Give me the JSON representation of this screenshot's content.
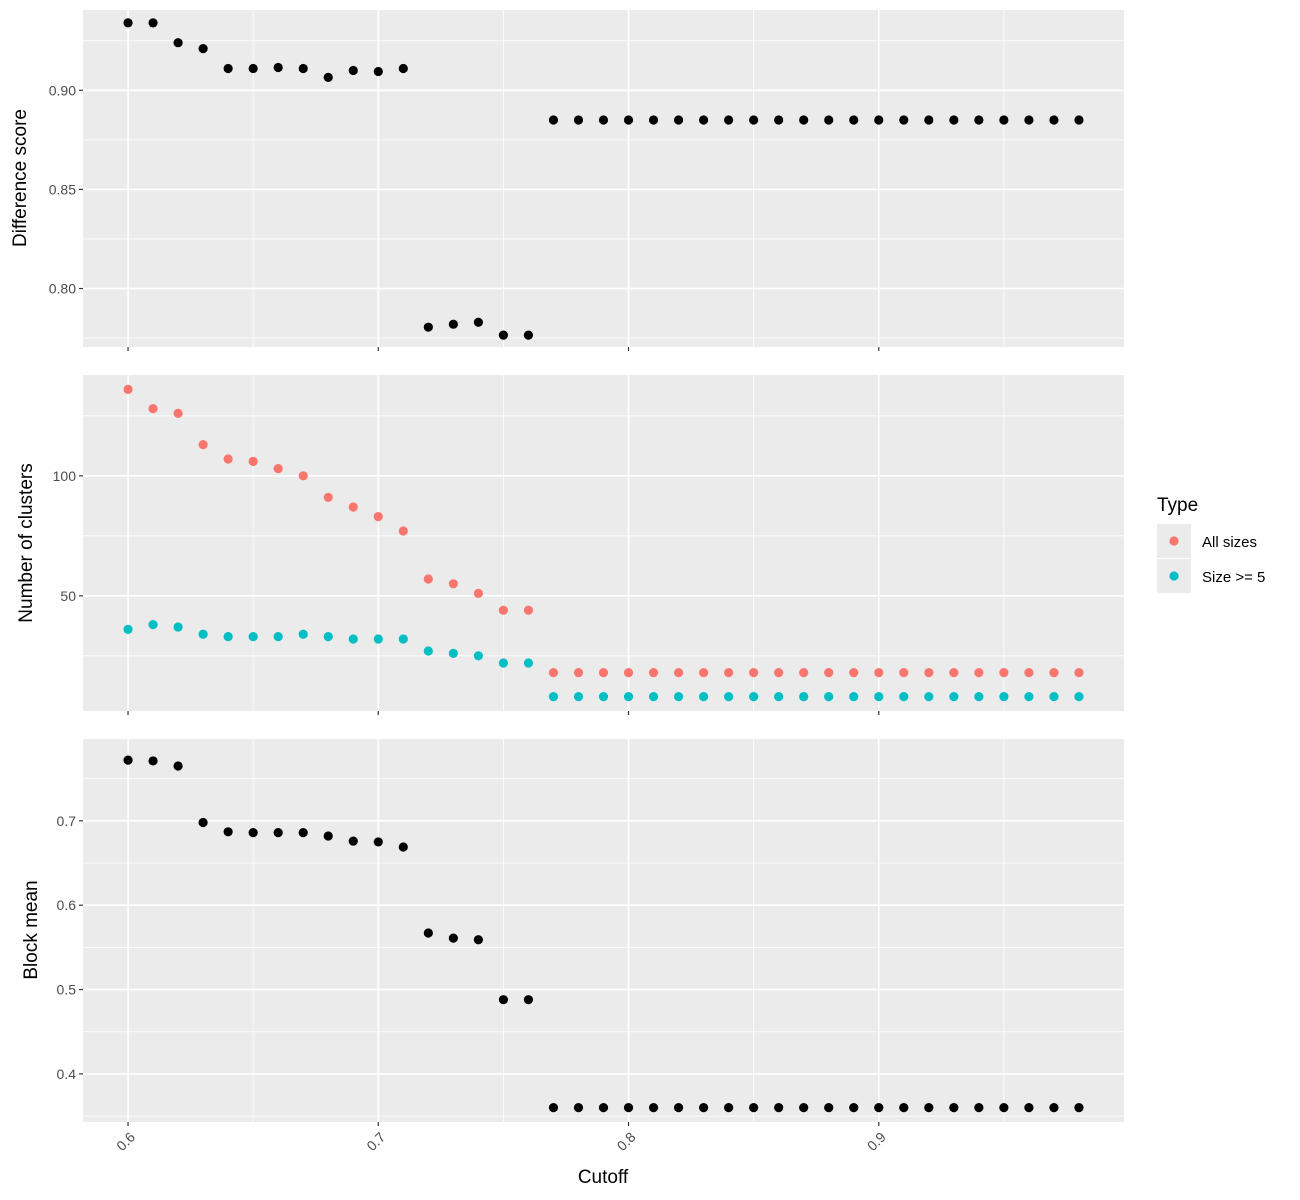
{
  "chart_data": [
    {
      "type": "scatter",
      "ylabel": "Difference score",
      "xlabel": "",
      "xlim": [
        0.582,
        0.998
      ],
      "ylim": [
        0.7705,
        0.9405
      ],
      "x_ticks": [
        0.6,
        0.7,
        0.8,
        0.9
      ],
      "y_ticks": [
        0.8,
        0.85,
        0.9
      ],
      "y_tick_labels": [
        "0.80",
        "0.85",
        "0.90"
      ],
      "grid": true,
      "series": [
        {
          "color": "#000000",
          "x": [
            0.6,
            0.61,
            0.62,
            0.63,
            0.64,
            0.65,
            0.66,
            0.67,
            0.68,
            0.69,
            0.7,
            0.71,
            0.72,
            0.73,
            0.74,
            0.75,
            0.76,
            0.77,
            0.78,
            0.79,
            0.8,
            0.81,
            0.82,
            0.83,
            0.84,
            0.85,
            0.86,
            0.87,
            0.88,
            0.89,
            0.9,
            0.91,
            0.92,
            0.93,
            0.94,
            0.95,
            0.96,
            0.97,
            0.98
          ],
          "y": [
            0.934,
            0.934,
            0.924,
            0.921,
            0.911,
            0.911,
            0.9115,
            0.911,
            0.9065,
            0.91,
            0.9095,
            0.911,
            0.7805,
            0.782,
            0.783,
            0.7765,
            0.7765,
            0.885,
            0.885,
            0.885,
            0.885,
            0.885,
            0.885,
            0.885,
            0.885,
            0.885,
            0.885,
            0.885,
            0.885,
            0.885,
            0.885,
            0.885,
            0.885,
            0.885,
            0.885,
            0.885,
            0.885,
            0.885,
            0.885
          ]
        }
      ]
    },
    {
      "type": "scatter",
      "ylabel": "Number of clusters",
      "xlabel": "",
      "xlim": [
        0.582,
        0.998
      ],
      "ylim": [
        2,
        142
      ],
      "x_ticks": [
        0.6,
        0.7,
        0.8,
        0.9
      ],
      "y_ticks": [
        50,
        100
      ],
      "y_tick_labels": [
        "50",
        "100"
      ],
      "grid": true,
      "legend": {
        "title": "Type",
        "position": "right",
        "entries": [
          {
            "label": "All sizes",
            "color": "#F8766D"
          },
          {
            "label": "Size >= 5",
            "color": "#00BFC4"
          }
        ]
      },
      "series": [
        {
          "name": "All sizes",
          "color": "#F8766D",
          "x": [
            0.6,
            0.61,
            0.62,
            0.63,
            0.64,
            0.65,
            0.66,
            0.67,
            0.68,
            0.69,
            0.7,
            0.71,
            0.72,
            0.73,
            0.74,
            0.75,
            0.76,
            0.77,
            0.78,
            0.79,
            0.8,
            0.81,
            0.82,
            0.83,
            0.84,
            0.85,
            0.86,
            0.87,
            0.88,
            0.89,
            0.9,
            0.91,
            0.92,
            0.93,
            0.94,
            0.95,
            0.96,
            0.97,
            0.98
          ],
          "y": [
            136,
            128,
            126,
            113,
            107,
            106,
            103,
            100,
            91,
            87,
            83,
            77,
            57,
            55,
            51,
            44,
            44,
            18,
            18,
            18,
            18,
            18,
            18,
            18,
            18,
            18,
            18,
            18,
            18,
            18,
            18,
            18,
            18,
            18,
            18,
            18,
            18,
            18,
            18
          ]
        },
        {
          "name": "Size >= 5",
          "color": "#00BFC4",
          "x": [
            0.6,
            0.61,
            0.62,
            0.63,
            0.64,
            0.65,
            0.66,
            0.67,
            0.68,
            0.69,
            0.7,
            0.71,
            0.72,
            0.73,
            0.74,
            0.75,
            0.76,
            0.77,
            0.78,
            0.79,
            0.8,
            0.81,
            0.82,
            0.83,
            0.84,
            0.85,
            0.86,
            0.87,
            0.88,
            0.89,
            0.9,
            0.91,
            0.92,
            0.93,
            0.94,
            0.95,
            0.96,
            0.97,
            0.98
          ],
          "y": [
            36,
            38,
            37,
            34,
            33,
            33,
            33,
            34,
            33,
            32,
            32,
            32,
            27,
            26,
            25,
            22,
            22,
            8,
            8,
            8,
            8,
            8,
            8,
            8,
            8,
            8,
            8,
            8,
            8,
            8,
            8,
            8,
            8,
            8,
            8,
            8,
            8,
            8,
            8
          ]
        }
      ]
    },
    {
      "type": "scatter",
      "ylabel": "Block mean",
      "xlabel": "Cutoff",
      "xlim": [
        0.582,
        0.998
      ],
      "ylim": [
        0.343,
        0.797
      ],
      "x_ticks": [
        0.6,
        0.7,
        0.8,
        0.9
      ],
      "x_tick_labels": [
        "0.6",
        "0.7",
        "0.8",
        "0.9"
      ],
      "y_ticks": [
        0.4,
        0.5,
        0.6,
        0.7
      ],
      "y_tick_labels": [
        "0.4",
        "0.5",
        "0.6",
        "0.7"
      ],
      "grid": true,
      "series": [
        {
          "color": "#000000",
          "x": [
            0.6,
            0.61,
            0.62,
            0.63,
            0.64,
            0.65,
            0.66,
            0.67,
            0.68,
            0.69,
            0.7,
            0.71,
            0.72,
            0.73,
            0.74,
            0.75,
            0.76,
            0.77,
            0.78,
            0.79,
            0.8,
            0.81,
            0.82,
            0.83,
            0.84,
            0.85,
            0.86,
            0.87,
            0.88,
            0.89,
            0.9,
            0.91,
            0.92,
            0.93,
            0.94,
            0.95,
            0.96,
            0.97,
            0.98
          ],
          "y": [
            0.772,
            0.771,
            0.765,
            0.698,
            0.687,
            0.686,
            0.686,
            0.686,
            0.682,
            0.676,
            0.675,
            0.669,
            0.567,
            0.561,
            0.559,
            0.488,
            0.488,
            0.36,
            0.36,
            0.36,
            0.36,
            0.36,
            0.36,
            0.36,
            0.36,
            0.36,
            0.36,
            0.36,
            0.36,
            0.36,
            0.36,
            0.36,
            0.36,
            0.36,
            0.36,
            0.36,
            0.36,
            0.36,
            0.36
          ]
        }
      ]
    }
  ]
}
